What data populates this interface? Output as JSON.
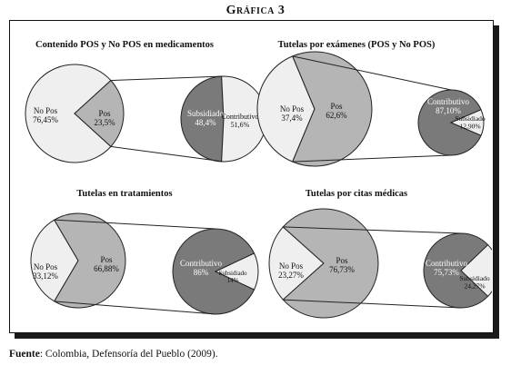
{
  "figure_title": "Gráfica 3",
  "source": {
    "label": "Fuente",
    "text": ": Colombia, Defensoría del Pueblo (2009)."
  },
  "colors": {
    "dark": "#7a7a7a",
    "medium": "#b5b5b5",
    "light": "#efefef",
    "stroke": "#222222"
  },
  "chart_data": [
    {
      "type": "pie-of-pie",
      "title": "Contenido POS y No POS en medicamentos",
      "main": [
        {
          "name": "No Pos",
          "label": "76,45%",
          "value": 76.45,
          "shade": "light"
        },
        {
          "name": "Pos",
          "label": "23,5%",
          "value": 23.5,
          "shade": "medium"
        }
      ],
      "secondary": [
        {
          "name": "Subsidiado",
          "label": "48,4%",
          "value": 48.4,
          "shade": "dark"
        },
        {
          "name": "Contributivo",
          "label": "51,6%",
          "value": 51.6,
          "shade": "light"
        }
      ]
    },
    {
      "type": "pie-of-pie",
      "title": "Tutelas por exámenes (POS y No POS)",
      "main": [
        {
          "name": "No Pos",
          "label": "37,4%",
          "value": 37.4,
          "shade": "light"
        },
        {
          "name": "Pos",
          "label": "62,6%",
          "value": 62.6,
          "shade": "medium"
        }
      ],
      "secondary": [
        {
          "name": "Contributivo",
          "label": "87,10%",
          "value": 87.1,
          "shade": "dark"
        },
        {
          "name": "Subsidiado",
          "label": "12,90%",
          "value": 12.9,
          "shade": "light"
        }
      ]
    },
    {
      "type": "pie-of-pie",
      "title": "Tutelas en tratamientos",
      "main": [
        {
          "name": "No Pos",
          "label": "33,12%",
          "value": 33.12,
          "shade": "light"
        },
        {
          "name": "Pos",
          "label": "66,88%",
          "value": 66.88,
          "shade": "medium"
        }
      ],
      "secondary": [
        {
          "name": "Contributivo",
          "label": "86%",
          "value": 86,
          "shade": "dark"
        },
        {
          "name": "Subsidiado",
          "label": "14%",
          "value": 14,
          "shade": "light"
        }
      ]
    },
    {
      "type": "pie-of-pie",
      "title": "Tutelas por citas médicas",
      "main": [
        {
          "name": "No Pos",
          "label": "23,27%",
          "value": 23.27,
          "shade": "light"
        },
        {
          "name": "Pos",
          "label": "76,73%",
          "value": 76.73,
          "shade": "medium"
        }
      ],
      "secondary": [
        {
          "name": "Contributivo",
          "label": "75,73%",
          "value": 75.73,
          "shade": "dark"
        },
        {
          "name": "Subsidiado",
          "label": "24,27%",
          "value": 24.27,
          "shade": "light"
        }
      ]
    }
  ]
}
